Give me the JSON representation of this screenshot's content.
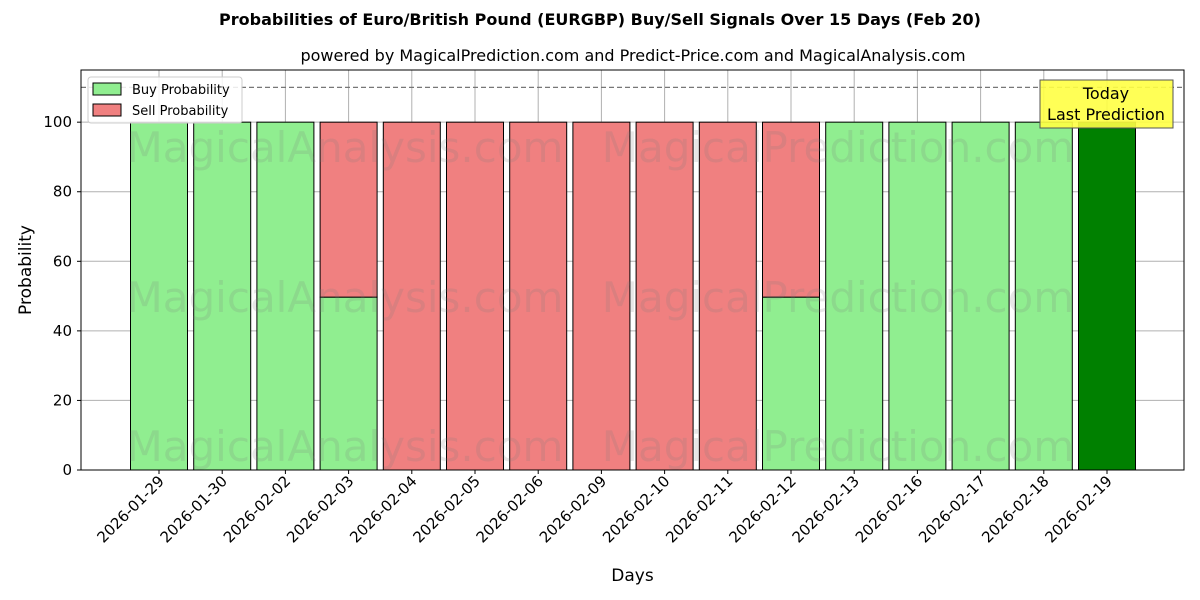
{
  "chart_data": {
    "type": "bar",
    "stacked": true,
    "title": "Probabilities of Euro/British Pound (EURGBP) Buy/Sell Signals Over 15 Days (Feb 20)",
    "subtitle": "powered by MagicalPrediction.com and Predict-Price.com and MagicalAnalysis.com",
    "xlabel": "Days",
    "ylabel": "Probability",
    "ylim": [
      0,
      115
    ],
    "yticks": [
      0,
      20,
      40,
      60,
      80,
      100
    ],
    "grid": true,
    "reference_line": 110,
    "legend_position": "upper left",
    "categories": [
      "2026-01-29",
      "2026-01-30",
      "2026-02-02",
      "2026-02-03",
      "2026-02-04",
      "2026-02-05",
      "2026-02-06",
      "2026-02-09",
      "2026-02-10",
      "2026-02-11",
      "2026-02-12",
      "2026-02-13",
      "2026-02-16",
      "2026-02-17",
      "2026-02-18",
      "2026-02-19"
    ],
    "series": [
      {
        "name": "Buy Probability",
        "color": "#90ee90",
        "values": [
          100,
          100,
          100,
          49.7,
          0,
          0,
          0,
          0,
          0,
          0,
          49.7,
          100,
          100,
          100,
          100,
          100
        ]
      },
      {
        "name": "Sell Probability",
        "color": "#f08080",
        "values": [
          0,
          0,
          0,
          50.3,
          100,
          100,
          100,
          100,
          100,
          100,
          50.3,
          0,
          0,
          0,
          0,
          0
        ]
      }
    ],
    "highlight": {
      "index": 15,
      "color": "#008000",
      "label": "Today\nLast Prediction",
      "label_lines": [
        "Today",
        "Last Prediction"
      ],
      "box_color": "#ffff44"
    },
    "watermarks": [
      "MagicalAnalysis.com",
      "MagicalPrediction.com"
    ]
  }
}
